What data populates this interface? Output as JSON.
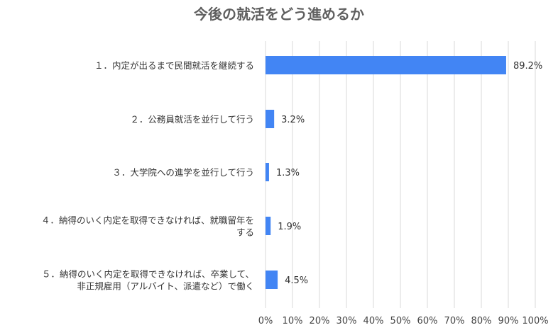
{
  "chart_data": {
    "type": "bar",
    "orientation": "horizontal",
    "title": "今後の就活をどう進めるか",
    "categories": [
      [
        "１．内定が出るまで民間就活を継続する"
      ],
      [
        "２．公務員就活を並行して行う"
      ],
      [
        "３．大学院への進学を並行して行う"
      ],
      [
        "４．納得のいく内定を取得できなければ、就職留年を",
        "する"
      ],
      [
        "５．納得のいく内定を取得できなければ、卒業して、",
        "非正規雇用（アルバイト、派遣など）で働く"
      ]
    ],
    "values": [
      89.2,
      3.2,
      1.3,
      1.9,
      4.5
    ],
    "value_labels": [
      "89.2%",
      "3.2%",
      "1.3%",
      "1.9%",
      "4.5%"
    ],
    "xlim": [
      0,
      100
    ],
    "x_ticks": [
      "0%",
      "10%",
      "20%",
      "30%",
      "40%",
      "50%",
      "60%",
      "70%",
      "80%",
      "90%",
      "100%"
    ],
    "xlabel": "",
    "ylabel": "",
    "grid": true,
    "legend": "none",
    "bar_color": "#4285f4",
    "grid_color": "#d9d9d9"
  }
}
